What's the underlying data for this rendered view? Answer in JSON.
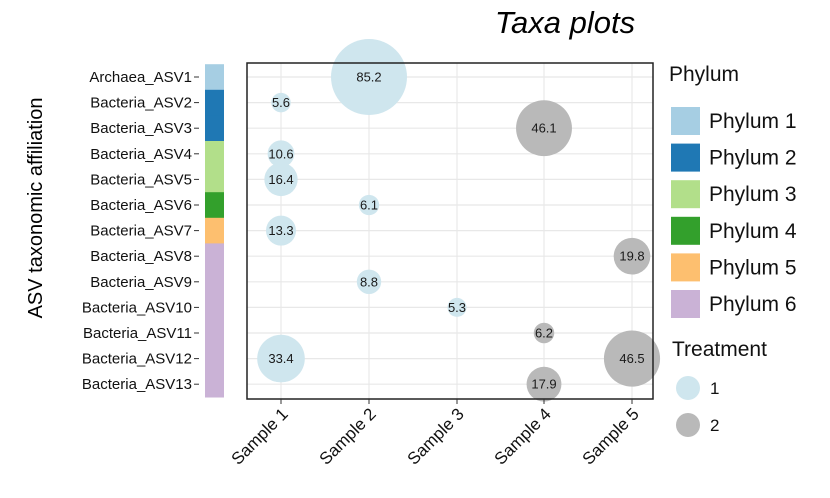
{
  "chart_data": {
    "type": "bubble",
    "title": "Taxa plots",
    "ylabel": "ASV taxonomic affiliation",
    "xlabel": "",
    "grid": true,
    "categories_x": [
      "Sample 1",
      "Sample 2",
      "Sample 3",
      "Sample 4",
      "Sample 5"
    ],
    "taxa": [
      {
        "name": "Archaea_ASV1",
        "phylum": "Phylum 1"
      },
      {
        "name": "Bacteria_ASV2",
        "phylum": "Phylum 2"
      },
      {
        "name": "Bacteria_ASV3",
        "phylum": "Phylum 2"
      },
      {
        "name": "Bacteria_ASV4",
        "phylum": "Phylum 3"
      },
      {
        "name": "Bacteria_ASV5",
        "phylum": "Phylum 3"
      },
      {
        "name": "Bacteria_ASV6",
        "phylum": "Phylum 4"
      },
      {
        "name": "Bacteria_ASV7",
        "phylum": "Phylum 5"
      },
      {
        "name": "Bacteria_ASV8",
        "phylum": "Phylum 6"
      },
      {
        "name": "Bacteria_ASV9",
        "phylum": "Phylum 6"
      },
      {
        "name": "Bacteria_ASV10",
        "phylum": "Phylum 6"
      },
      {
        "name": "Bacteria_ASV11",
        "phylum": "Phylum 6"
      },
      {
        "name": "Bacteria_ASV12",
        "phylum": "Phylum 6"
      },
      {
        "name": "Bacteria_ASV13",
        "phylum": "Phylum 6"
      }
    ],
    "points": [
      {
        "taxon": "Archaea_ASV1",
        "sample": "Sample 2",
        "value": 85.2,
        "label": "85.2",
        "treatment": "1"
      },
      {
        "taxon": "Bacteria_ASV2",
        "sample": "Sample 1",
        "value": 5.6,
        "label": "5.6",
        "treatment": "1"
      },
      {
        "taxon": "Bacteria_ASV3",
        "sample": "Sample 4",
        "value": 46.1,
        "label": "46.1",
        "treatment": "2"
      },
      {
        "taxon": "Bacteria_ASV4",
        "sample": "Sample 1",
        "value": 10.6,
        "label": "10.6",
        "treatment": "1"
      },
      {
        "taxon": "Bacteria_ASV5",
        "sample": "Sample 1",
        "value": 16.4,
        "label": "16.4",
        "treatment": "1"
      },
      {
        "taxon": "Bacteria_ASV6",
        "sample": "Sample 2",
        "value": 6.1,
        "label": "6.1",
        "treatment": "1"
      },
      {
        "taxon": "Bacteria_ASV7",
        "sample": "Sample 1",
        "value": 13.3,
        "label": "13.3",
        "treatment": "1"
      },
      {
        "taxon": "Bacteria_ASV8",
        "sample": "Sample 5",
        "value": 19.8,
        "label": "19.8",
        "treatment": "2"
      },
      {
        "taxon": "Bacteria_ASV9",
        "sample": "Sample 2",
        "value": 8.8,
        "label": "8.8",
        "treatment": "1"
      },
      {
        "taxon": "Bacteria_ASV10",
        "sample": "Sample 3",
        "value": 5.3,
        "label": "5.3",
        "treatment": "1"
      },
      {
        "taxon": "Bacteria_ASV11",
        "sample": "Sample 4",
        "value": 6.2,
        "label": "6.2",
        "treatment": "2"
      },
      {
        "taxon": "Bacteria_ASV12",
        "sample": "Sample 1",
        "value": 33.4,
        "label": "33.4",
        "treatment": "1"
      },
      {
        "taxon": "Bacteria_ASV12",
        "sample": "Sample 5",
        "value": 46.5,
        "label": "46.5",
        "treatment": "2"
      },
      {
        "taxon": "Bacteria_ASV13",
        "sample": "Sample 4",
        "value": 17.9,
        "label": "17.9",
        "treatment": "2"
      }
    ],
    "legend_phylum": {
      "title": "Phylum",
      "entries": [
        {
          "label": "Phylum 1",
          "color": "#a6cee3"
        },
        {
          "label": "Phylum 2",
          "color": "#1f78b4"
        },
        {
          "label": "Phylum 3",
          "color": "#b2df8a"
        },
        {
          "label": "Phylum 4",
          "color": "#33a02c"
        },
        {
          "label": "Phylum 5",
          "color": "#fdbf6f"
        },
        {
          "label": "Phylum 6",
          "color": "#cab2d6"
        }
      ]
    },
    "legend_treatment": {
      "title": "Treatment",
      "entries": [
        {
          "label": "1",
          "color": "#cfe6ee"
        },
        {
          "label": "2",
          "color": "#b9b9b9"
        }
      ]
    },
    "legend_placement": "right"
  }
}
